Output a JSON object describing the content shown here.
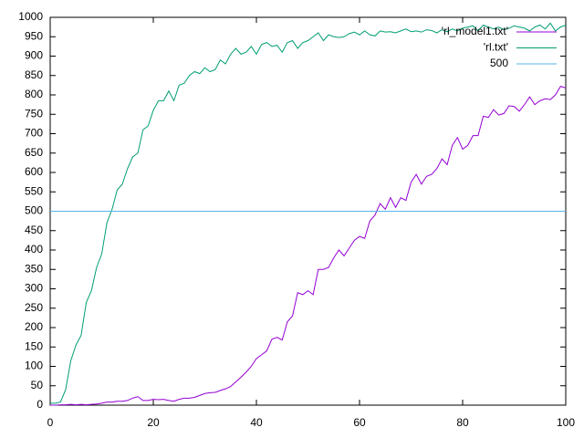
{
  "chart_data": {
    "type": "line",
    "xlim": [
      0,
      100
    ],
    "xticks": [
      0,
      20,
      40,
      60,
      80,
      100
    ],
    "ylim": [
      0,
      1000
    ],
    "yticks": [
      0,
      50,
      100,
      150,
      200,
      250,
      300,
      350,
      400,
      450,
      500,
      550,
      600,
      650,
      700,
      750,
      800,
      850,
      900,
      950,
      1000
    ],
    "grid": false,
    "legend": "top-right",
    "series": [
      {
        "name": "'rl_model1.txt'",
        "color": "#9400d3",
        "x": [
          0,
          1,
          2,
          3,
          4,
          5,
          6,
          7,
          8,
          9,
          10,
          11,
          12,
          13,
          14,
          15,
          16,
          17,
          18,
          19,
          20,
          21,
          22,
          23,
          24,
          25,
          26,
          27,
          28,
          29,
          30,
          31,
          32,
          33,
          34,
          35,
          36,
          37,
          38,
          39,
          40,
          41,
          42,
          43,
          44,
          45,
          46,
          47,
          48,
          49,
          50,
          51,
          52,
          53,
          54,
          55,
          56,
          57,
          58,
          59,
          60,
          61,
          62,
          63,
          64,
          65,
          66,
          67,
          68,
          69,
          70,
          71,
          72,
          73,
          74,
          75,
          76,
          77,
          78,
          79,
          80,
          81,
          82,
          83,
          84,
          85,
          86,
          87,
          88,
          89,
          90,
          91,
          92,
          93,
          94,
          95,
          96,
          97,
          98,
          99,
          100
        ],
        "values": [
          0,
          0,
          1,
          1,
          2,
          1,
          2,
          1,
          2,
          3,
          5,
          8,
          8,
          10,
          10,
          12,
          18,
          22,
          12,
          12,
          15,
          14,
          15,
          12,
          10,
          15,
          18,
          18,
          20,
          25,
          30,
          32,
          33,
          38,
          42,
          48,
          60,
          72,
          85,
          100,
          120,
          130,
          140,
          170,
          175,
          168,
          215,
          230,
          290,
          285,
          295,
          285,
          350,
          350,
          355,
          380,
          400,
          385,
          405,
          425,
          435,
          430,
          475,
          490,
          520,
          505,
          535,
          510,
          535,
          528,
          575,
          595,
          570,
          590,
          595,
          610,
          635,
          620,
          670,
          690,
          660,
          670,
          695,
          695,
          745,
          742,
          762,
          748,
          752,
          772,
          770,
          758,
          775,
          795,
          775,
          785,
          790,
          788,
          800,
          822,
          818
        ]
      },
      {
        "name": "'rl.txt'",
        "color": "#009e73",
        "x": [
          0,
          1,
          2,
          3,
          4,
          5,
          6,
          7,
          8,
          9,
          10,
          11,
          12,
          13,
          14,
          15,
          16,
          17,
          18,
          19,
          20,
          21,
          22,
          23,
          24,
          25,
          26,
          27,
          28,
          29,
          30,
          31,
          32,
          33,
          34,
          35,
          36,
          37,
          38,
          39,
          40,
          41,
          42,
          43,
          44,
          45,
          46,
          47,
          48,
          49,
          50,
          51,
          52,
          53,
          54,
          55,
          56,
          57,
          58,
          59,
          60,
          61,
          62,
          63,
          64,
          65,
          66,
          67,
          68,
          69,
          70,
          71,
          72,
          73,
          74,
          75,
          76,
          77,
          78,
          79,
          80,
          81,
          82,
          83,
          84,
          85,
          86,
          87,
          88,
          89,
          90,
          91,
          92,
          93,
          94,
          95,
          96,
          97,
          98,
          99,
          100
        ],
        "values": [
          5,
          5,
          8,
          40,
          115,
          155,
          180,
          265,
          295,
          355,
          390,
          470,
          505,
          555,
          570,
          610,
          640,
          650,
          710,
          720,
          760,
          785,
          785,
          810,
          785,
          825,
          830,
          850,
          860,
          855,
          870,
          860,
          865,
          890,
          880,
          905,
          920,
          905,
          910,
          925,
          905,
          930,
          935,
          925,
          928,
          910,
          935,
          940,
          920,
          935,
          940,
          950,
          960,
          940,
          955,
          950,
          948,
          950,
          958,
          962,
          955,
          965,
          955,
          952,
          965,
          962,
          963,
          960,
          965,
          970,
          963,
          965,
          962,
          968,
          966,
          960,
          968,
          963,
          970,
          965,
          972,
          975,
          978,
          965,
          980,
          975,
          970,
          975,
          968,
          972,
          978,
          975,
          972,
          965,
          975,
          980,
          970,
          985,
          965,
          975,
          980
        ]
      },
      {
        "name": "500",
        "color": "#56b4e9",
        "x": [
          0,
          100
        ],
        "values": [
          500,
          500
        ]
      }
    ]
  }
}
